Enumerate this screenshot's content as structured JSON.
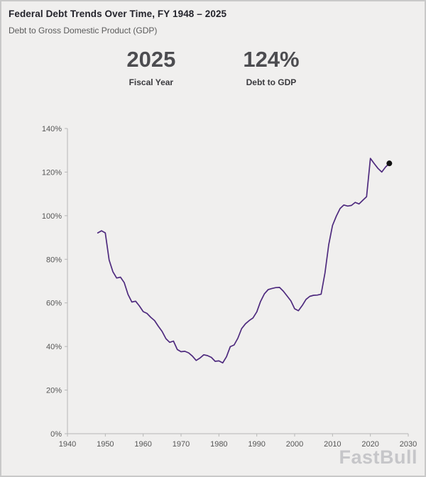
{
  "header": {
    "title": "Federal Debt Trends Over Time, FY 1948 – 2025",
    "subtitle": "Debt to Gross Domestic Product (GDP)"
  },
  "stats": [
    {
      "value": "2025",
      "label": "Fiscal Year"
    },
    {
      "value": "124%",
      "label": "Debt to GDP"
    }
  ],
  "watermark": "FastBull",
  "chart_data": {
    "type": "line",
    "title": "",
    "xlabel": "",
    "ylabel": "",
    "x": [
      1948,
      1949,
      1950,
      1951,
      1952,
      1953,
      1954,
      1955,
      1956,
      1957,
      1958,
      1959,
      1960,
      1961,
      1962,
      1963,
      1964,
      1965,
      1966,
      1967,
      1968,
      1969,
      1970,
      1971,
      1972,
      1973,
      1974,
      1975,
      1976,
      1977,
      1978,
      1979,
      1980,
      1981,
      1982,
      1983,
      1984,
      1985,
      1986,
      1987,
      1988,
      1989,
      1990,
      1991,
      1992,
      1993,
      1994,
      1995,
      1996,
      1997,
      1998,
      1999,
      2000,
      2001,
      2002,
      2003,
      2004,
      2005,
      2006,
      2007,
      2008,
      2009,
      2010,
      2011,
      2012,
      2013,
      2014,
      2015,
      2016,
      2017,
      2018,
      2019,
      2020,
      2021,
      2022,
      2023,
      2024,
      2025
    ],
    "values": [
      92.1,
      93.1,
      92.1,
      79.7,
      74.3,
      71.4,
      71.8,
      69.3,
      63.9,
      60.4,
      60.8,
      58.6,
      56.0,
      55.2,
      53.4,
      51.9,
      49.3,
      46.9,
      43.6,
      41.9,
      42.5,
      38.6,
      37.6,
      37.8,
      37.1,
      35.6,
      33.6,
      34.7,
      36.2,
      35.8,
      35.0,
      33.2,
      33.4,
      32.5,
      35.3,
      39.9,
      40.7,
      43.8,
      48.2,
      50.4,
      51.9,
      53.1,
      55.9,
      60.7,
      64.1,
      66.1,
      66.6,
      67.0,
      67.1,
      65.4,
      63.2,
      60.9,
      57.3,
      56.4,
      58.8,
      61.6,
      63.0,
      63.5,
      63.6,
      64.0,
      73.7,
      86.7,
      95.5,
      99.8,
      103.3,
      104.9,
      104.4,
      104.7,
      106.1,
      105.4,
      107.1,
      108.7,
      126.3,
      123.9,
      121.7,
      120.0,
      122.3,
      124.0
    ],
    "xlim": [
      1940,
      2030
    ],
    "ylim": [
      0,
      140
    ],
    "x_ticks": [
      1940,
      1950,
      1960,
      1970,
      1980,
      1990,
      2000,
      2010,
      2020,
      2030
    ],
    "y_ticks": [
      0,
      20,
      40,
      60,
      80,
      100,
      120,
      140
    ],
    "y_tick_suffix": "%",
    "grid": false,
    "legend": false,
    "line_color": "#4e2a7e",
    "axis_color": "#b6b6b6",
    "tick_label_color": "#555555",
    "marker": {
      "x": 2025,
      "y": 124,
      "color": "#111111"
    }
  }
}
